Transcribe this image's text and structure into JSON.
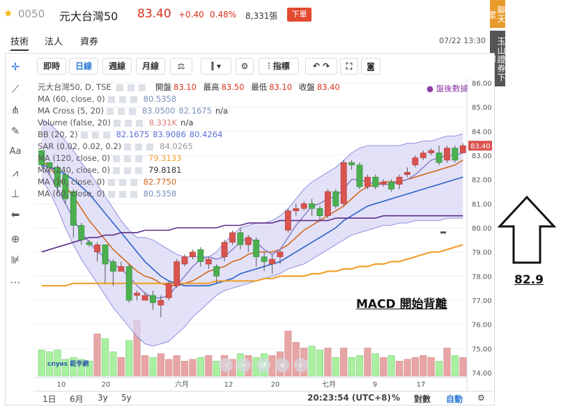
{
  "header": {
    "code": "0050",
    "name": "元大台灣50",
    "price": "83.40",
    "change": "+0.40",
    "change_pct": "0.48%",
    "volume": "8,331張",
    "order_label": "下單"
  },
  "tabs": [
    {
      "label": "技術",
      "active": true
    },
    {
      "label": "法人",
      "active": false
    },
    {
      "label": "資券",
      "active": false
    }
  ],
  "datetime": "07/22 13:30",
  "side_buttons": [
    "聊天室",
    "玉山證券下單"
  ],
  "toolbar": {
    "items": [
      "即時",
      "日線",
      "週線",
      "月線"
    ],
    "active": "日線",
    "indicator_label": "指標"
  },
  "legend": {
    "symbol_line": "元大台灣50, D, TSE",
    "open_label": "開盤",
    "open": "83.10",
    "high_label": "最高",
    "high": "83.50",
    "low_label": "最低",
    "low": "83.10",
    "close_label": "收盤",
    "close": "83.40",
    "rows": [
      {
        "name": "MA (60, close, 0)",
        "values": [
          "80.5358"
        ],
        "colors": [
          "#7a8fbd"
        ]
      },
      {
        "name": "MA Cross (5, 20)",
        "values": [
          "83.0500",
          "82.1675",
          "n/a"
        ],
        "colors": [
          "#7a8fbd",
          "#7a8fbd",
          "#333"
        ]
      },
      {
        "name": "Volume (false, 20)",
        "values": [
          "8.331K",
          "n/a"
        ],
        "colors": [
          "#e07a7a",
          "#333"
        ]
      },
      {
        "name": "BB (20, 2)",
        "values": [
          "82.1675",
          "83.9086",
          "80.4264"
        ],
        "colors": [
          "#5b6fd6",
          "#5b6fd6",
          "#5b6fd6"
        ]
      },
      {
        "name": "SAR (0.02, 0.02, 0.2)",
        "values": [
          "84.0265"
        ],
        "colors": [
          "#999"
        ]
      },
      {
        "name": "MA (120, close, 0)",
        "values": [
          "79.3133"
        ],
        "colors": [
          "#f0a030"
        ]
      },
      {
        "name": "MA (240, close, 0)",
        "values": [
          "79.8181"
        ],
        "colors": [
          "#333"
        ]
      },
      {
        "name": "MA (10, close, 0)",
        "values": [
          "82.7750"
        ],
        "colors": [
          "#d2691e"
        ]
      },
      {
        "name": "MA (60, close, 0)",
        "values": [
          "80.5358"
        ],
        "colors": [
          "#7a8fbd"
        ]
      }
    ]
  },
  "after_hours_label": "盤後數據",
  "chart_data": {
    "type": "candlestick",
    "y_axis_ticks": [
      "86.00",
      "85.00",
      "84.00",
      "83.00",
      "82.00",
      "81.00",
      "80.00",
      "79.00",
      "78.00",
      "77.00",
      "76.00",
      "75.00",
      "74.00"
    ],
    "ylim": [
      73.8,
      86.2
    ],
    "x_axis_ticks": [
      "10",
      "20",
      "六月",
      "12",
      "20",
      "七月",
      "9",
      "17"
    ],
    "last_price_tag": "83.40",
    "candles": [
      [
        83.2,
        83.1,
        82.5,
        82.6
      ],
      [
        82.7,
        82.6,
        82.2,
        82.5
      ],
      [
        82.5,
        82.6,
        81.5,
        81.7
      ],
      [
        82.2,
        82.3,
        81.0,
        81.2
      ],
      [
        81.5,
        81.6,
        79.6,
        80.1
      ],
      [
        80.1,
        80.2,
        79.3,
        79.5
      ],
      [
        79.4,
        79.5,
        79.2,
        79.3
      ],
      [
        79.0,
        79.4,
        78.6,
        79.3
      ],
      [
        79.3,
        79.3,
        77.7,
        78.5
      ],
      [
        78.6,
        78.7,
        77.6,
        78.2
      ],
      [
        78.2,
        78.6,
        78.2,
        78.4
      ],
      [
        78.4,
        78.5,
        76.9,
        77.0
      ],
      [
        77.2,
        77.4,
        77.0,
        77.3
      ],
      [
        77.0,
        77.3,
        77.1,
        77.2
      ],
      [
        77.2,
        77.4,
        76.6,
        76.9
      ],
      [
        76.8,
        77.2,
        76.3,
        77.0
      ],
      [
        77.1,
        77.8,
        77.0,
        77.7
      ],
      [
        77.6,
        78.7,
        77.5,
        78.6
      ],
      [
        78.5,
        78.9,
        78.4,
        78.8
      ],
      [
        78.8,
        79.1,
        78.7,
        79.0
      ],
      [
        79.1,
        79.2,
        78.4,
        78.6
      ],
      [
        78.5,
        78.8,
        78.3,
        78.7
      ],
      [
        78.4,
        78.5,
        77.7,
        78.0
      ],
      [
        78.8,
        79.5,
        78.6,
        79.4
      ],
      [
        79.4,
        79.9,
        79.3,
        79.8
      ],
      [
        79.8,
        80.0,
        79.1,
        79.3
      ],
      [
        79.3,
        79.7,
        79.0,
        79.6
      ],
      [
        79.5,
        79.6,
        78.4,
        78.8
      ],
      [
        78.8,
        79.0,
        78.2,
        78.6
      ],
      [
        78.5,
        78.9,
        78.1,
        78.7
      ],
      [
        78.8,
        79.1,
        78.5,
        79.0
      ],
      [
        79.9,
        80.8,
        79.8,
        80.7
      ],
      [
        80.7,
        81.0,
        80.5,
        80.8
      ],
      [
        80.8,
        81.1,
        80.7,
        81.0
      ],
      [
        81.0,
        81.2,
        80.5,
        80.8
      ],
      [
        80.8,
        80.9,
        80.3,
        80.5
      ],
      [
        80.5,
        81.6,
        80.4,
        81.5
      ],
      [
        81.5,
        81.6,
        80.8,
        80.9
      ],
      [
        81.0,
        82.8,
        80.9,
        82.7
      ],
      [
        82.7,
        82.8,
        82.4,
        82.6
      ],
      [
        82.6,
        82.7,
        81.6,
        81.7
      ],
      [
        81.7,
        82.2,
        81.6,
        82.1
      ],
      [
        82.1,
        82.2,
        81.6,
        81.7
      ],
      [
        81.8,
        82.0,
        81.7,
        81.9
      ],
      [
        81.9,
        82.0,
        81.5,
        81.6
      ],
      [
        81.8,
        82.2,
        81.6,
        82.1
      ],
      [
        82.2,
        82.5,
        82.1,
        82.3
      ],
      [
        82.6,
        83.0,
        82.5,
        82.9
      ],
      [
        82.9,
        83.2,
        82.8,
        83.1
      ],
      [
        83.1,
        83.3,
        83.0,
        83.2
      ],
      [
        83.1,
        83.4,
        82.6,
        82.7
      ],
      [
        82.8,
        83.4,
        82.7,
        83.3
      ],
      [
        83.3,
        83.4,
        82.7,
        82.8
      ],
      [
        83.1,
        83.5,
        83.1,
        83.4
      ]
    ],
    "volumes": [
      28,
      26,
      28,
      18,
      20,
      18,
      16,
      45,
      40,
      26,
      20,
      38,
      60,
      22,
      20,
      24,
      18,
      22,
      16,
      18,
      20,
      22,
      16,
      22,
      18,
      24,
      22,
      20,
      24,
      22,
      26,
      48,
      36,
      30,
      32,
      28,
      30,
      20,
      30,
      20,
      22,
      30,
      24,
      20,
      22,
      16,
      18,
      20,
      22,
      20,
      16,
      30,
      22,
      20
    ],
    "series": [
      {
        "name": "MA (10, close, 0)",
        "color": "#d2691e",
        "from": 0,
        "values": [
          82.8,
          82.5,
          82.1,
          81.7,
          81.3,
          80.8,
          80.3,
          79.9,
          79.5,
          79.1,
          78.8,
          78.5,
          78.2,
          78.0,
          77.9,
          77.7,
          77.6,
          77.6,
          77.7,
          77.8,
          78.0,
          78.2,
          78.3,
          78.4,
          78.6,
          78.7,
          78.9,
          79.0,
          79.0,
          79.0,
          79.1,
          79.3,
          79.6,
          79.9,
          80.1,
          80.3,
          80.5,
          80.7,
          80.9,
          81.2,
          81.5,
          81.7,
          81.8,
          81.9,
          81.9,
          81.9,
          82.0,
          82.1,
          82.2,
          82.3,
          82.4,
          82.5,
          82.6,
          82.8
        ]
      },
      {
        "name": "MA (20, close, 0)",
        "color": "#2860c8",
        "from": 0,
        "values": [
          82.6,
          82.5,
          82.4,
          82.2,
          82.0,
          81.7,
          81.4,
          81.0,
          80.6,
          80.2,
          79.8,
          79.4,
          79.0,
          78.6,
          78.3,
          78.0,
          77.8,
          77.7,
          77.6,
          77.6,
          77.6,
          77.6,
          77.7,
          77.8,
          77.9,
          78.1,
          78.2,
          78.3,
          78.4,
          78.5,
          78.6,
          78.8,
          79.0,
          79.2,
          79.4,
          79.6,
          79.8,
          80.0,
          80.3,
          80.5,
          80.7,
          80.9,
          81.0,
          81.1,
          81.2,
          81.3,
          81.4,
          81.5,
          81.6,
          81.7,
          81.8,
          81.9,
          82.0,
          82.1
        ]
      },
      {
        "name": "MA (5, close, 0)",
        "color": "#8e84c8",
        "from": 0,
        "values": [
          82.6,
          82.2,
          81.6,
          81.0,
          80.4,
          79.8,
          79.4,
          79.0,
          78.8,
          78.5,
          78.3,
          78.0,
          77.6,
          77.3,
          77.1,
          77.1,
          77.2,
          77.6,
          78.0,
          78.4,
          78.7,
          78.8,
          78.7,
          78.8,
          79.1,
          79.4,
          79.6,
          79.4,
          79.1,
          78.9,
          79.1,
          79.6,
          80.1,
          80.5,
          80.9,
          81.0,
          81.2,
          81.3,
          81.6,
          82.0,
          82.0,
          81.9,
          81.8,
          81.8,
          81.8,
          81.9,
          82.0,
          82.2,
          82.5,
          82.8,
          82.9,
          83.0,
          83.0,
          83.1
        ]
      },
      {
        "name": "MA (60, close, 0)",
        "color": "#5a2d8a",
        "from": 0,
        "values": [
          79.0,
          79.1,
          79.2,
          79.3,
          79.4,
          79.5,
          79.6,
          79.6,
          79.7,
          79.7,
          79.8,
          79.8,
          79.8,
          79.9,
          79.9,
          79.9,
          79.9,
          80.0,
          80.0,
          80.0,
          80.0,
          80.0,
          80.0,
          80.1,
          80.1,
          80.1,
          80.2,
          80.2,
          80.2,
          80.2,
          80.3,
          80.3,
          80.3,
          80.3,
          80.3,
          80.3,
          80.3,
          80.4,
          80.4,
          80.4,
          80.4,
          80.4,
          80.4,
          80.5,
          80.5,
          80.5,
          80.5,
          80.5,
          80.5,
          80.5,
          80.5,
          80.5,
          80.5,
          80.5
        ]
      },
      {
        "name": "MA (120, close, 0)",
        "color": "#f0a030",
        "from": 0,
        "values": [
          77.6,
          77.6,
          77.6,
          77.6,
          77.7,
          77.7,
          77.7,
          77.7,
          77.7,
          77.7,
          77.7,
          77.7,
          77.7,
          77.7,
          77.7,
          77.7,
          77.7,
          77.7,
          77.7,
          77.7,
          77.7,
          77.7,
          77.8,
          77.8,
          77.8,
          77.8,
          77.8,
          77.8,
          77.9,
          77.9,
          78.0,
          78.0,
          78.0,
          78.0,
          78.1,
          78.1,
          78.2,
          78.2,
          78.3,
          78.3,
          78.4,
          78.4,
          78.5,
          78.5,
          78.6,
          78.6,
          78.7,
          78.8,
          78.9,
          79.0,
          79.0,
          79.1,
          79.2,
          79.3
        ]
      }
    ],
    "bb_upper": [
      84.5,
      84.3,
      84.0,
      83.6,
      83.2,
      82.7,
      82.3,
      81.8,
      81.3,
      80.8,
      80.3,
      79.9,
      79.6,
      79.6,
      79.5,
      79.3,
      79.1,
      78.9,
      78.8,
      78.8,
      78.8,
      78.8,
      79.0,
      79.4,
      79.7,
      80.0,
      80.1,
      80.2,
      80.2,
      80.3,
      80.5,
      80.8,
      81.2,
      81.6,
      81.9,
      82.1,
      82.3,
      82.5,
      82.8,
      83.1,
      83.3,
      83.4,
      83.4,
      83.4,
      83.4,
      83.4,
      83.5,
      83.5,
      83.6,
      83.6,
      83.7,
      83.8,
      83.8,
      83.9
    ],
    "bb_lower": [
      82.0,
      81.5,
      80.8,
      80.0,
      79.3,
      78.7,
      78.2,
      77.7,
      77.2,
      76.7,
      76.3,
      75.9,
      75.5,
      75.2,
      75.1,
      75.2,
      75.3,
      75.6,
      75.9,
      76.3,
      76.6,
      76.9,
      77.2,
      77.4,
      77.5,
      77.6,
      77.7,
      77.8,
      77.9,
      78.0,
      78.1,
      78.3,
      78.4,
      78.5,
      78.7,
      78.9,
      79.1,
      79.3,
      79.5,
      79.7,
      79.8,
      79.9,
      80.0,
      80.1,
      80.1,
      80.2,
      80.2,
      80.3,
      80.3,
      80.3,
      80.3,
      80.4,
      80.4,
      80.4
    ]
  },
  "bottombar": {
    "left": [
      "1日",
      "6月",
      "3y",
      "5y"
    ],
    "time": "20:23:54 (UTC+8)",
    "pct": "%",
    "log": "對數",
    "auto": "自動"
  },
  "annotations": {
    "macd_note": "MACD 開始背離",
    "target": "82.9"
  },
  "watermark": "cnyes 鉅亨網",
  "colors": {
    "up": "#d9534f",
    "down": "#4caf50",
    "bb_fill": "#d9d7f4",
    "accent": "#2a75d8"
  }
}
